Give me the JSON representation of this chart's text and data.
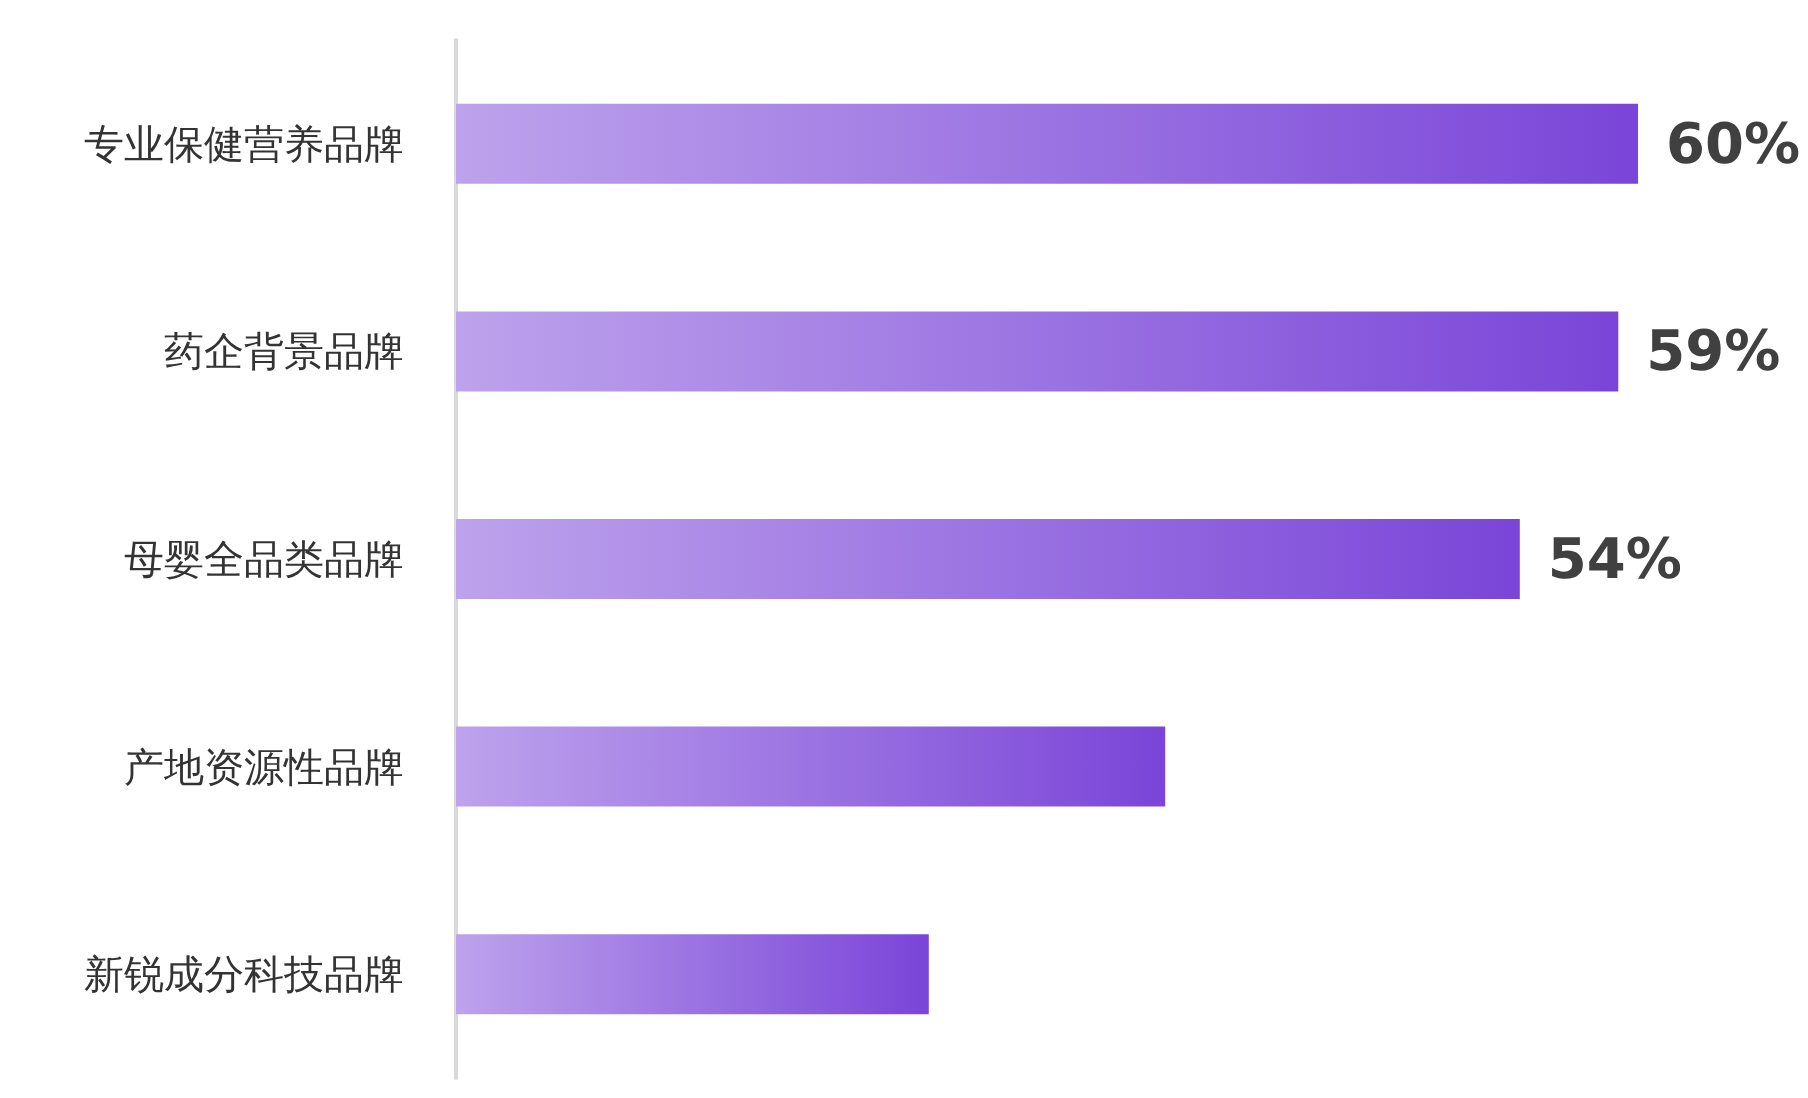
{
  "chart_data": {
    "type": "bar",
    "orientation": "horizontal",
    "categories": [
      "专业保健营养品牌",
      "药企背景品牌",
      "母婴全品类品牌",
      "产地资源性品牌",
      "新锐成分科技品牌"
    ],
    "values": [
      60,
      59,
      54,
      36,
      24
    ],
    "value_labels": [
      "60%",
      "59%",
      "54%",
      null,
      null
    ],
    "color": "#7a45d8"
  }
}
